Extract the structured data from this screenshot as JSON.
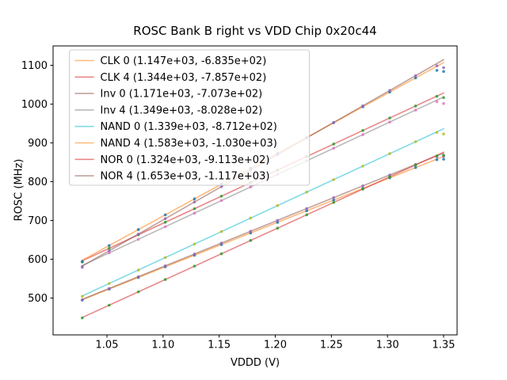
{
  "chart_data": {
    "type": "scatter",
    "title": "ROSC Bank B right vs VDD Chip 0x20c44",
    "xlabel": "VDDD (V)",
    "ylabel": "ROSC (MHz)",
    "xlim": [
      1.002,
      1.362
    ],
    "ylim": [
      405,
      1150
    ],
    "grid": false,
    "legend_position": "upper left",
    "line_alpha": 0.55,
    "marker_alpha": 0.85,
    "colors": {
      "background": "#ffffff",
      "spine": "#000000",
      "tick_label": "#000000",
      "legend_border": "#cccccc",
      "legend_background": "#ffffff"
    },
    "xticks": [
      {
        "v": 1.05,
        "label": "1.05"
      },
      {
        "v": 1.1,
        "label": "1.10"
      },
      {
        "v": 1.15,
        "label": "1.15"
      },
      {
        "v": 1.2,
        "label": "1.20"
      },
      {
        "v": 1.25,
        "label": "1.25"
      },
      {
        "v": 1.3,
        "label": "1.30"
      },
      {
        "v": 1.35,
        "label": "1.35"
      }
    ],
    "yticks": [
      {
        "v": 500,
        "label": "500"
      },
      {
        "v": 600,
        "label": "600"
      },
      {
        "v": 700,
        "label": "700"
      },
      {
        "v": 800,
        "label": "800"
      },
      {
        "v": 900,
        "label": "900"
      },
      {
        "v": 1000,
        "label": "1000"
      },
      {
        "v": 1100,
        "label": "1100"
      }
    ],
    "x": [
      1.028,
      1.052,
      1.078,
      1.102,
      1.128,
      1.152,
      1.178,
      1.202,
      1.228,
      1.252,
      1.278,
      1.302,
      1.325,
      1.344,
      1.35
    ],
    "series": [
      {
        "name": "CLK 0",
        "legend_label": "CLK 0 (1.147e+03, -6.835e+02)",
        "slope": 1147,
        "intercept": -683.5,
        "marker_color": "#1f77b4",
        "line_color": "#ff7f0e",
        "y": [
          494.6,
          523.1,
          553.0,
          580.5,
          610.3,
          637.8,
          667.7,
          695.2,
          725.0,
          752.5,
          782.4,
          809.9,
          836.3,
          856.6,
          857.9
        ]
      },
      {
        "name": "CLK 4",
        "legend_label": "CLK 4 (1.344e+03, -7.857e+02)",
        "slope": 1344,
        "intercept": -785.7,
        "marker_color": "#2ca02c",
        "line_color": "#d62728",
        "y": [
          592.9,
          628.2,
          663.1,
          695.4,
          730.3,
          762.6,
          797.5,
          829.8,
          864.7,
          897.0,
          931.9,
          964.2,
          995.1,
          1020.1,
          1016.7
        ]
      },
      {
        "name": "Inv 0",
        "legend_label": "Inv 0 (1.171e+03, -7.073e+02)",
        "slope": 1171,
        "intercept": -707.3,
        "marker_color": "#9467bd",
        "line_color": "#8c564b",
        "y": [
          495.5,
          524.6,
          555.0,
          583.1,
          613.6,
          641.7,
          672.1,
          700.2,
          730.7,
          758.8,
          789.2,
          817.3,
          844.3,
          864.0,
          865.6
        ]
      },
      {
        "name": "Inv 4",
        "legend_label": "Inv 4 (1.349e+03, -8.028e+02)",
        "slope": 1349,
        "intercept": -802.8,
        "marker_color": "#e377c2",
        "line_color": "#7f7f7f",
        "y": [
          581.0,
          616.3,
          651.4,
          683.8,
          718.9,
          751.2,
          786.3,
          818.7,
          853.8,
          886.1,
          921.2,
          953.6,
          984.6,
          1006.3,
          1001.4
        ]
      },
      {
        "name": "NAND 0",
        "legend_label": "NAND 0 (1.339e+03, -8.712e+02)",
        "slope": 1339,
        "intercept": -871.2,
        "marker_color": "#bcbd22",
        "line_color": "#17becf",
        "y": [
          504.3,
          537.4,
          572.2,
          604.4,
          639.2,
          671.3,
          706.1,
          738.3,
          773.1,
          805.2,
          840.0,
          872.2,
          903.0,
          926.9,
          923.0
        ]
      },
      {
        "name": "NAND 4",
        "legend_label": "NAND 4 (1.583e+03, -1.030e+03)",
        "slope": 1583,
        "intercept": -1030.0,
        "marker_color": "#1f77b4",
        "line_color": "#ff7f0e",
        "y": [
          594.3,
          635.3,
          676.5,
          714.5,
          755.6,
          793.6,
          834.8,
          872.8,
          913.9,
          951.9,
          993.1,
          1031.1,
          1067.5,
          1087.0,
          1084.1
        ]
      },
      {
        "name": "NOR 0",
        "legend_label": "NOR 0 (1.324e+03, -9.113e+02)",
        "slope": 1324,
        "intercept": -911.3,
        "marker_color": "#2ca02c",
        "line_color": "#d62728",
        "y": [
          448.8,
          481.5,
          516.0,
          547.7,
          582.2,
          613.9,
          648.4,
          680.1,
          714.6,
          746.4,
          780.8,
          812.5,
          843.0,
          866.5,
          868.1
        ]
      },
      {
        "name": "NOR 4",
        "legend_label": "NOR 4 (1.653e+03, -1.117e+03)",
        "slope": 1653,
        "intercept": -1117.0,
        "marker_color": "#9467bd",
        "line_color": "#8c564b",
        "y": [
          579.3,
          622.0,
          665.0,
          704.6,
          747.6,
          787.3,
          830.2,
          869.9,
          912.9,
          952.6,
          995.5,
          1035.2,
          1073.2,
          1098.6,
          1094.0
        ]
      }
    ]
  }
}
